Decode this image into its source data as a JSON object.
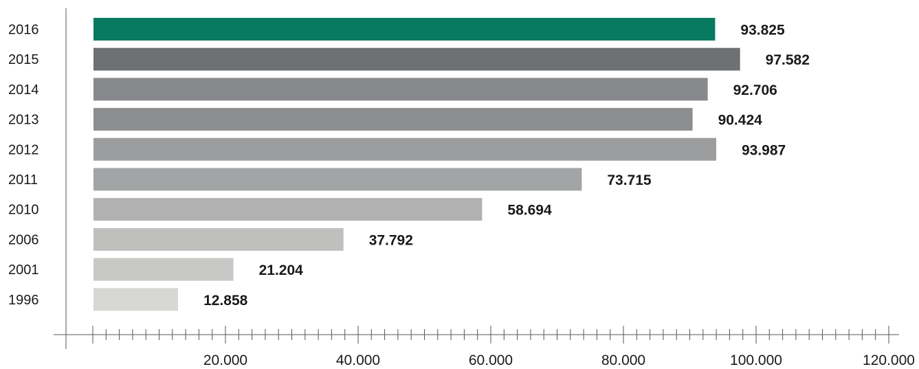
{
  "chart_data": {
    "type": "bar",
    "orientation": "horizontal",
    "categories": [
      "2016",
      "2015",
      "2014",
      "2013",
      "2012",
      "2011",
      "2010",
      "2006",
      "2001",
      "1996"
    ],
    "values": [
      93825,
      97582,
      92706,
      90424,
      93987,
      73715,
      58694,
      37792,
      21204,
      12858
    ],
    "value_labels": [
      "93.825",
      "97.582",
      "92.706",
      "90.424",
      "93.987",
      "73.715",
      "58.694",
      "37.792",
      "21.204",
      "12.858"
    ],
    "bar_colors": [
      "#077a5f",
      "#6e7074",
      "#88898c",
      "#8c8e90",
      "#9c9d9f",
      "#a3a4a5",
      "#b1b1b1",
      "#bfbfbe",
      "#c8c8c6",
      "#d7d7d3"
    ],
    "xlim": [
      0,
      120000
    ],
    "x_tick_values": [
      20000,
      40000,
      60000,
      80000,
      100000,
      120000
    ],
    "x_tick_labels": [
      "20.000",
      "40.000",
      "60.000",
      "80.000",
      "100.000",
      "120.000"
    ],
    "minor_tick_step": 2000,
    "title": "",
    "xlabel": "",
    "ylabel": "",
    "grid": false,
    "legend": "none"
  }
}
